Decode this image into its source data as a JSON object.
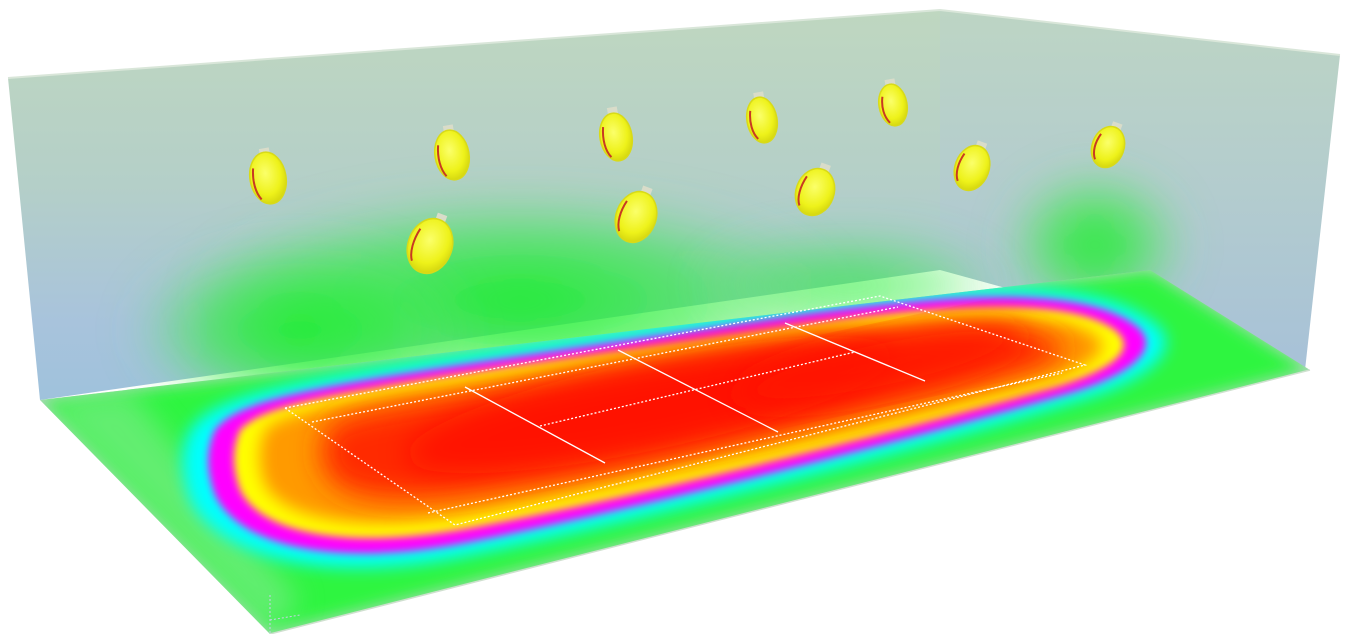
{
  "scene": {
    "subject": "tennis-court-illuminance-heatmap",
    "colors": {
      "background": "#ffffff",
      "wall_tint": "#b7d3c0",
      "wall_base_tint": "#a9c2dd",
      "court_lines": "#ffffff",
      "luminaire_body": "#f2f21c",
      "luminaire_accent": "#c83a22",
      "heat_peak": "#ff1a00",
      "heat_orange": "#ff8a00",
      "heat_yellow": "#ffff00",
      "heat_magenta": "#ff00ff",
      "heat_cyan": "#00ffff",
      "heat_green": "#00f000",
      "heat_base": "#2bff3a"
    },
    "luminaires_count": 10
  }
}
